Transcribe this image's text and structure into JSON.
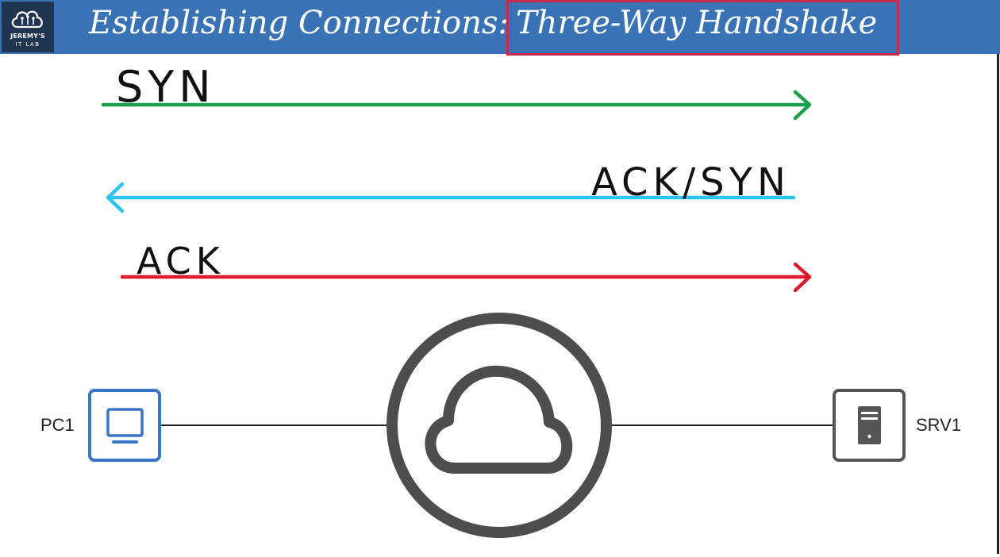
{
  "logo": {
    "line1": "JEREMY'S",
    "line2": "IT LAB"
  },
  "title": {
    "part1": "Establishing Connections:",
    "part2": "Three-Way Handshake"
  },
  "messages": [
    {
      "label": "SYN",
      "direction": "right",
      "color": "#1aa04a"
    },
    {
      "label": "ACK/SYN",
      "direction": "left",
      "color": "#2ec4f0"
    },
    {
      "label": "ACK",
      "direction": "right",
      "color": "#e0192e"
    }
  ],
  "devices": {
    "client": {
      "label": "PC1",
      "color": "#3a74c4",
      "icon": "monitor-icon"
    },
    "server": {
      "label": "SRV1",
      "color": "#555555",
      "icon": "server-icon"
    },
    "network": {
      "icon": "cloud-icon",
      "color": "#4d4d4d"
    }
  }
}
